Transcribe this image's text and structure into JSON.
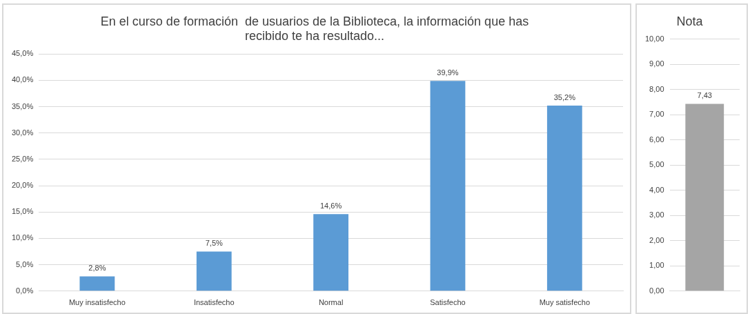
{
  "chart_data": [
    {
      "type": "bar",
      "title": "En el curso de formación  de usuarios de la Biblioteca, la información que has\nrecibido te ha resultado...",
      "categories": [
        "Muy insatisfecho",
        "Insatisfecho",
        "Normal",
        "Satisfecho",
        "Muy satisfecho"
      ],
      "values": [
        2.8,
        7.5,
        14.6,
        39.9,
        35.2
      ],
      "value_labels": [
        "2,8%",
        "7,5%",
        "14,6%",
        "39,9%",
        "35,2%"
      ],
      "color": "#5b9bd5",
      "ylim": [
        0,
        45
      ],
      "yticks": [
        {
          "value": 0,
          "label": "0,0%"
        },
        {
          "value": 5,
          "label": "5,0%"
        },
        {
          "value": 10,
          "label": "10,0%"
        },
        {
          "value": 15,
          "label": "15,0%"
        },
        {
          "value": 20,
          "label": "20,0%"
        },
        {
          "value": 25,
          "label": "25,0%"
        },
        {
          "value": 30,
          "label": "30,0%"
        },
        {
          "value": 35,
          "label": "35,0%"
        },
        {
          "value": 40,
          "label": "40,0%"
        },
        {
          "value": 45,
          "label": "45,0%"
        }
      ],
      "grid": "y"
    },
    {
      "type": "bar",
      "title": "Nota",
      "categories": [
        null
      ],
      "values": [
        7.43
      ],
      "value_labels": [
        "7,43"
      ],
      "color": "#a5a5a5",
      "ylim": [
        0,
        10
      ],
      "yticks": [
        {
          "value": 0,
          "label": "0,00"
        },
        {
          "value": 1,
          "label": "1,00"
        },
        {
          "value": 2,
          "label": "2,00"
        },
        {
          "value": 3,
          "label": "3,00"
        },
        {
          "value": 4,
          "label": "4,00"
        },
        {
          "value": 5,
          "label": "5,00"
        },
        {
          "value": 6,
          "label": "6,00"
        },
        {
          "value": 7,
          "label": "7,00"
        },
        {
          "value": 8,
          "label": "8,00"
        },
        {
          "value": 9,
          "label": "9,00"
        },
        {
          "value": 10,
          "label": "10,00"
        }
      ],
      "grid": "y"
    }
  ]
}
